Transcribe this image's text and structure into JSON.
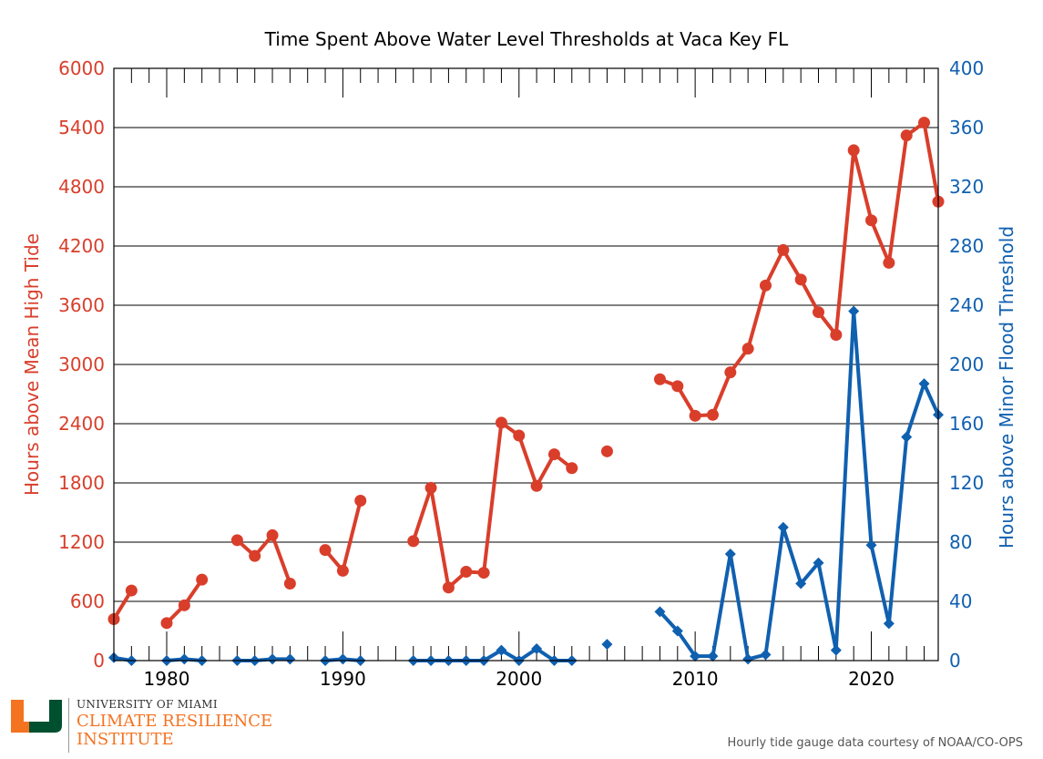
{
  "chart_data": {
    "type": "line",
    "title": "Time Spent Above Water Level Thresholds at Vaca Key FL",
    "xlabel": "",
    "x_ticks": [
      1980,
      1990,
      2000,
      2010,
      2020
    ],
    "xlim": [
      1977,
      2023.8
    ],
    "grid": true,
    "y_left": {
      "label": "Hours above Mean High Tide",
      "ylim": [
        0,
        6000
      ],
      "ticks": [
        0,
        600,
        1200,
        1800,
        2400,
        3000,
        3600,
        4200,
        4800,
        5400,
        6000
      ],
      "color": "#d93e2b"
    },
    "y_right": {
      "label": "Hours above Minor Flood Threshold",
      "ylim": [
        0,
        400
      ],
      "ticks": [
        0,
        40,
        80,
        120,
        160,
        200,
        240,
        280,
        320,
        360,
        400
      ],
      "color": "#1060b0"
    },
    "series": [
      {
        "axis": "left",
        "color": "#d93e2b",
        "marker": "circle",
        "points": [
          [
            1977,
            420
          ],
          [
            1978,
            710
          ],
          [
            1980,
            380
          ],
          [
            1981,
            560
          ],
          [
            1982,
            820
          ],
          [
            1984,
            1220
          ],
          [
            1985,
            1060
          ],
          [
            1986,
            1270
          ],
          [
            1987,
            780
          ],
          [
            1989,
            1120
          ],
          [
            1990,
            910
          ],
          [
            1991,
            1620
          ],
          [
            1994,
            1210
          ],
          [
            1995,
            1750
          ],
          [
            1996,
            740
          ],
          [
            1997,
            900
          ],
          [
            1998,
            890
          ],
          [
            1999,
            2410
          ],
          [
            2000,
            2280
          ],
          [
            2001,
            1770
          ],
          [
            2002,
            2090
          ],
          [
            2003,
            1950
          ],
          [
            2005,
            2120
          ],
          [
            2008,
            2850
          ],
          [
            2009,
            2780
          ],
          [
            2010,
            2480
          ],
          [
            2011,
            2490
          ],
          [
            2012,
            2920
          ],
          [
            2013,
            3160
          ],
          [
            2014,
            3800
          ],
          [
            2015,
            4160
          ],
          [
            2016,
            3860
          ],
          [
            2017,
            3530
          ],
          [
            2018,
            3300
          ],
          [
            2019,
            5170
          ],
          [
            2020,
            4460
          ],
          [
            2021,
            4030
          ],
          [
            2022,
            5320
          ],
          [
            2023,
            5450
          ],
          [
            2023.8,
            4650
          ]
        ]
      },
      {
        "axis": "right",
        "color": "#1060b0",
        "marker": "diamond",
        "points": [
          [
            1977,
            2
          ],
          [
            1978,
            0
          ],
          [
            1980,
            0
          ],
          [
            1981,
            1
          ],
          [
            1982,
            0
          ],
          [
            1984,
            0
          ],
          [
            1985,
            0
          ],
          [
            1986,
            1
          ],
          [
            1987,
            1
          ],
          [
            1989,
            0
          ],
          [
            1990,
            1
          ],
          [
            1991,
            0
          ],
          [
            1994,
            0
          ],
          [
            1995,
            0
          ],
          [
            1996,
            0
          ],
          [
            1997,
            0
          ],
          [
            1998,
            0
          ],
          [
            1999,
            7
          ],
          [
            2000,
            0
          ],
          [
            2001,
            8
          ],
          [
            2002,
            0
          ],
          [
            2003,
            0
          ],
          [
            2005,
            11
          ],
          [
            2008,
            33
          ],
          [
            2009,
            20
          ],
          [
            2010,
            3
          ],
          [
            2011,
            3
          ],
          [
            2012,
            72
          ],
          [
            2013,
            1
          ],
          [
            2014,
            4
          ],
          [
            2015,
            90
          ],
          [
            2016,
            52
          ],
          [
            2017,
            66
          ],
          [
            2018,
            7
          ],
          [
            2019,
            236
          ],
          [
            2020,
            78
          ],
          [
            2021,
            25
          ],
          [
            2022,
            151
          ],
          [
            2023,
            187
          ],
          [
            2023.8,
            166
          ]
        ]
      }
    ]
  },
  "branding": {
    "org_line1": "UNIVERSITY OF MIAMI",
    "org_line2": "CLIMATE RESILIENCE",
    "org_line3": "INSTITUTE",
    "logo_colors": {
      "green": "#005030",
      "orange": "#f47321"
    }
  },
  "credit": "Hourly tide gauge data courtesy of NOAA/CO-OPS"
}
